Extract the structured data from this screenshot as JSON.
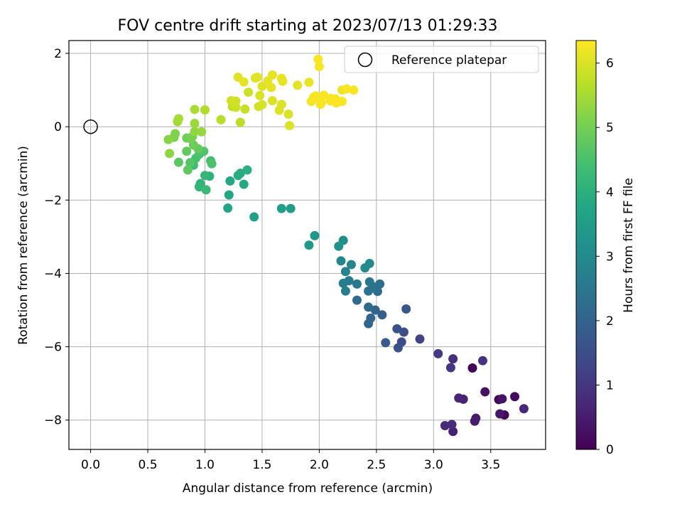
{
  "chart_data": {
    "type": "scatter",
    "title": "FOV centre drift starting at 2023/07/13 01:29:33",
    "xlabel": "Angular distance from reference (arcmin)",
    "ylabel": "Rotation from reference (arcmin)",
    "xlim": [
      -0.19,
      3.98
    ],
    "ylim": [
      -8.8,
      2.35
    ],
    "x_ticks": [
      0.0,
      0.5,
      1.0,
      1.5,
      2.0,
      2.5,
      3.0,
      3.5
    ],
    "x_tick_labels": [
      "0.0",
      "0.5",
      "1.0",
      "1.5",
      "2.0",
      "2.5",
      "3.0",
      "3.5"
    ],
    "y_ticks": [
      2,
      0,
      -2,
      -4,
      -6,
      -8
    ],
    "y_tick_labels": [
      "2",
      "0",
      "−2",
      "−4",
      "−6",
      "−8"
    ],
    "grid": true,
    "colormap": "viridis",
    "colorbar": {
      "label": "Hours from first FF file",
      "range": [
        0,
        6.35
      ],
      "ticks": [
        0,
        1,
        2,
        3,
        4,
        5,
        6
      ],
      "tick_labels": [
        "0",
        "1",
        "2",
        "3",
        "4",
        "5",
        "6"
      ]
    },
    "legend": {
      "position": "top-right",
      "entries": [
        "Reference platepar"
      ]
    },
    "reference_point": {
      "x": 0.0,
      "y": 0.0,
      "label": "Reference platepar"
    },
    "series": [
      {
        "points": [
          [
            3.34,
            -6.58,
            0.05
          ],
          [
            3.57,
            -7.44,
            0.1
          ],
          [
            3.62,
            -7.86,
            0.15
          ],
          [
            3.71,
            -7.36,
            0.2
          ],
          [
            3.45,
            -7.23,
            0.3
          ],
          [
            3.6,
            -7.42,
            0.35
          ],
          [
            3.58,
            -7.83,
            0.4
          ],
          [
            3.37,
            -7.95,
            0.45
          ],
          [
            3.36,
            -8.03,
            0.5
          ],
          [
            3.17,
            -8.31,
            0.55
          ],
          [
            3.26,
            -7.43,
            0.6
          ],
          [
            3.22,
            -7.4,
            0.65
          ],
          [
            3.79,
            -7.69,
            0.7
          ],
          [
            3.1,
            -8.15,
            0.75
          ],
          [
            3.16,
            -8.12,
            0.8
          ],
          [
            3.17,
            -6.33,
            0.85
          ],
          [
            3.43,
            -6.38,
            0.9
          ],
          [
            3.15,
            -6.57,
            1.0
          ],
          [
            3.04,
            -6.19,
            1.1
          ],
          [
            2.88,
            -5.79,
            1.25
          ],
          [
            2.72,
            -5.87,
            1.4
          ],
          [
            2.74,
            -5.6,
            1.5
          ],
          [
            2.69,
            -6.03,
            1.6
          ],
          [
            2.68,
            -5.51,
            1.65
          ],
          [
            2.76,
            -4.97,
            1.75
          ],
          [
            2.58,
            -5.89,
            1.8
          ],
          [
            2.55,
            -5.13,
            1.9
          ],
          [
            2.49,
            -5.0,
            2.0
          ],
          [
            2.43,
            -5.37,
            2.05
          ],
          [
            2.45,
            -5.22,
            2.1
          ],
          [
            2.43,
            -4.92,
            2.15
          ],
          [
            2.33,
            -4.73,
            2.2
          ],
          [
            2.51,
            -4.49,
            2.25
          ],
          [
            2.53,
            -4.29,
            2.3
          ],
          [
            2.43,
            -4.48,
            2.35
          ],
          [
            2.47,
            -4.36,
            2.4
          ],
          [
            2.44,
            -4.23,
            2.45
          ],
          [
            2.33,
            -4.29,
            2.55
          ],
          [
            2.26,
            -4.2,
            2.6
          ],
          [
            2.21,
            -4.27,
            2.65
          ],
          [
            2.23,
            -4.48,
            2.7
          ],
          [
            2.23,
            -3.95,
            2.8
          ],
          [
            2.28,
            -3.76,
            2.85
          ],
          [
            2.19,
            -3.66,
            2.9
          ],
          [
            2.44,
            -3.73,
            2.95
          ],
          [
            2.4,
            -3.85,
            3.0
          ],
          [
            2.21,
            -3.1,
            3.1
          ],
          [
            2.17,
            -3.26,
            3.2
          ],
          [
            1.96,
            -2.97,
            3.3
          ],
          [
            1.91,
            -3.23,
            3.4
          ],
          [
            1.75,
            -2.23,
            3.5
          ],
          [
            1.67,
            -2.23,
            3.55
          ],
          [
            1.43,
            -2.46,
            3.6
          ],
          [
            1.2,
            -2.22,
            3.7
          ],
          [
            1.21,
            -1.86,
            3.75
          ],
          [
            1.22,
            -1.48,
            3.8
          ],
          [
            1.34,
            -1.57,
            3.85
          ],
          [
            1.29,
            -1.33,
            3.9
          ],
          [
            1.31,
            -1.27,
            3.95
          ],
          [
            1.37,
            -1.18,
            4.0
          ],
          [
            1.04,
            -1.35,
            4.05
          ],
          [
            0.96,
            -1.55,
            4.1
          ],
          [
            0.95,
            -1.64,
            4.15
          ],
          [
            1.0,
            -1.33,
            4.2
          ],
          [
            1.01,
            -1.72,
            4.25
          ],
          [
            0.9,
            -1.05,
            4.35
          ],
          [
            1.05,
            -0.93,
            4.4
          ],
          [
            0.92,
            -0.86,
            4.45
          ],
          [
            0.95,
            -0.75,
            4.5
          ],
          [
            1.06,
            -1.01,
            4.55
          ],
          [
            0.99,
            -0.67,
            4.6
          ],
          [
            0.87,
            -0.98,
            4.65
          ],
          [
            0.77,
            -0.97,
            4.7
          ],
          [
            0.85,
            -1.18,
            4.75
          ],
          [
            0.84,
            -0.67,
            4.8
          ],
          [
            0.94,
            -0.6,
            4.85
          ],
          [
            0.9,
            -0.5,
            4.9
          ],
          [
            0.84,
            -0.31,
            4.95
          ],
          [
            0.87,
            -0.32,
            5.0
          ],
          [
            0.89,
            -0.27,
            5.05
          ],
          [
            0.73,
            -0.29,
            5.1
          ],
          [
            0.74,
            -0.19,
            5.15
          ],
          [
            0.68,
            -0.35,
            5.2
          ],
          [
            0.69,
            -0.73,
            5.25
          ],
          [
            0.91,
            -0.13,
            5.3
          ],
          [
            0.97,
            -0.14,
            5.35
          ],
          [
            0.91,
            0.09,
            5.4
          ],
          [
            0.76,
            0.14,
            5.45
          ],
          [
            0.77,
            0.22,
            5.5
          ],
          [
            0.91,
            0.47,
            5.55
          ],
          [
            1.0,
            0.46,
            5.6
          ],
          [
            1.14,
            0.19,
            5.65
          ],
          [
            1.31,
            0.12,
            5.7
          ],
          [
            1.24,
            0.55,
            5.75
          ],
          [
            1.35,
            0.48,
            5.8
          ],
          [
            1.27,
            0.53,
            5.85
          ],
          [
            1.23,
            0.71,
            5.9
          ],
          [
            1.27,
            0.7,
            5.9
          ],
          [
            1.38,
            0.94,
            5.85
          ],
          [
            1.47,
            0.55,
            5.9
          ],
          [
            1.5,
            0.6,
            5.95
          ],
          [
            1.48,
            0.85,
            6.0
          ],
          [
            1.59,
            0.71,
            6.0
          ],
          [
            1.67,
            0.61,
            6.0
          ],
          [
            1.65,
            0.45,
            6.05
          ],
          [
            1.73,
            0.34,
            6.0
          ],
          [
            1.74,
            0.03,
            6.0
          ],
          [
            1.81,
            1.13,
            6.1
          ],
          [
            1.91,
            1.21,
            6.15
          ],
          [
            1.5,
            1.1,
            6.05
          ],
          [
            1.58,
            1.07,
            6.1
          ],
          [
            1.55,
            1.25,
            6.1
          ],
          [
            1.59,
            1.41,
            6.1
          ],
          [
            1.67,
            1.32,
            6.15
          ],
          [
            1.68,
            1.24,
            6.1
          ],
          [
            1.46,
            1.35,
            6.1
          ],
          [
            1.44,
            1.33,
            6.05
          ],
          [
            1.29,
            1.35,
            6.05
          ],
          [
            1.34,
            1.22,
            6.1
          ],
          [
            1.95,
            0.8,
            6.25
          ],
          [
            1.93,
            0.69,
            6.25
          ],
          [
            1.97,
            0.84,
            6.3
          ],
          [
            2.0,
            0.76,
            6.3
          ],
          [
            2.02,
            0.66,
            6.3
          ],
          [
            2.01,
            0.61,
            6.3
          ],
          [
            2.04,
            0.86,
            6.3
          ],
          [
            2.1,
            0.77,
            6.3
          ],
          [
            2.1,
            0.7,
            6.3
          ],
          [
            2.15,
            0.65,
            6.3
          ],
          [
            2.14,
            0.76,
            6.3
          ],
          [
            2.2,
            1.0,
            6.2
          ],
          [
            2.2,
            0.69,
            6.3
          ],
          [
            2.24,
            1.03,
            6.3
          ],
          [
            2.3,
            1.0,
            6.3
          ],
          [
            1.99,
            1.84,
            6.3
          ],
          [
            2.0,
            1.64,
            6.3
          ]
        ]
      }
    ]
  }
}
